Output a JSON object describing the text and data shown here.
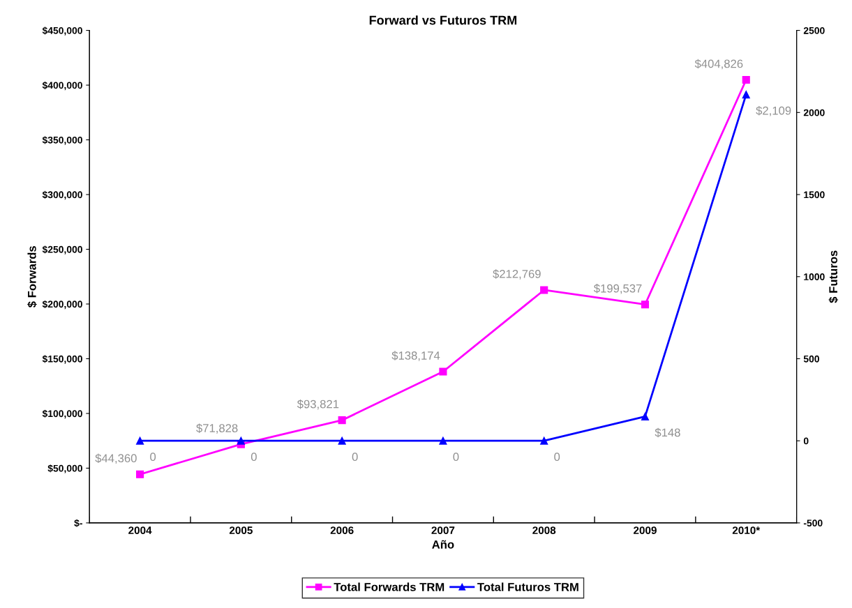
{
  "chart_data": {
    "type": "line",
    "title": "Forward vs Futuros TRM",
    "xlabel": "Año",
    "ylabel": "$ Forwards",
    "y2label": "$ Futuros",
    "categories": [
      "2004",
      "2005",
      "2006",
      "2007",
      "2008",
      "2009",
      "2010*"
    ],
    "series": [
      {
        "name": "Total Forwards TRM",
        "color": "#ff00ff",
        "marker": "square",
        "values": [
          44360,
          71828,
          93821,
          138174,
          212769,
          199537,
          404826
        ],
        "value_labels": [
          "$44,360",
          "$71,828",
          "$93,821",
          "$138,174",
          "$212,769",
          "$199,537",
          "$404,826"
        ]
      },
      {
        "name": "Total Futuros TRM",
        "color": "#0000ff",
        "marker": "triangle",
        "axis": "y2",
        "values": [
          0,
          0,
          0,
          0,
          0,
          148,
          2109
        ],
        "value_labels": [
          "0",
          "0",
          "0",
          "0",
          "0",
          "$148",
          "$2,109"
        ]
      }
    ],
    "ylim": [
      0,
      450000
    ],
    "yticks": [
      {
        "value": 0,
        "label": "$-"
      },
      {
        "value": 50000,
        "label": "$50,000"
      },
      {
        "value": 100000,
        "label": "$100,000"
      },
      {
        "value": 150000,
        "label": "$150,000"
      },
      {
        "value": 200000,
        "label": "$200,000"
      },
      {
        "value": 250000,
        "label": "$250,000"
      },
      {
        "value": 300000,
        "label": "$300,000"
      },
      {
        "value": 350000,
        "label": "$350,000"
      },
      {
        "value": 400000,
        "label": "$400,000"
      },
      {
        "value": 450000,
        "label": "$450,000"
      }
    ],
    "y2lim": [
      -500,
      2500
    ],
    "y2ticks": [
      {
        "value": -500,
        "label": "-500"
      },
      0,
      500,
      1000,
      1500,
      2000,
      2500
    ],
    "grid": false,
    "legend": "bottom",
    "line_style": "solid"
  }
}
